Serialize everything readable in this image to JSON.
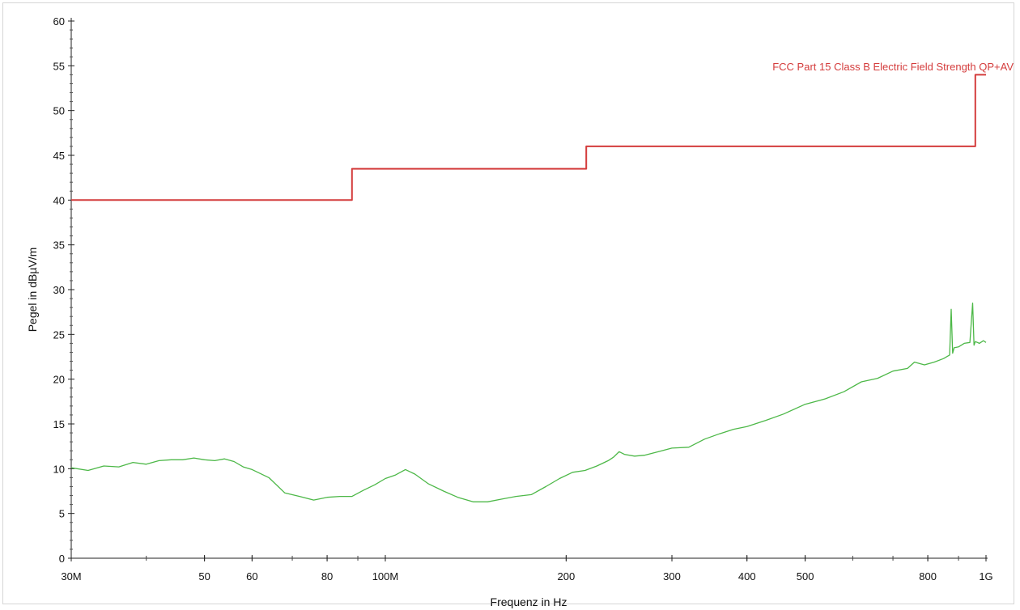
{
  "chart_data": {
    "type": "line",
    "xscale": "log",
    "xlim": [
      30000000,
      1000000000
    ],
    "ylim": [
      0,
      60
    ],
    "xlabel": "Frequenz in Hz",
    "ylabel": "Pegel in dBµV/m",
    "grid": false,
    "x_ticks": [
      {
        "value": 30000000,
        "label": "30M"
      },
      {
        "value": 50000000,
        "label": "50"
      },
      {
        "value": 60000000,
        "label": "60"
      },
      {
        "value": 80000000,
        "label": "80"
      },
      {
        "value": 100000000,
        "label": "100M"
      },
      {
        "value": 200000000,
        "label": "200"
      },
      {
        "value": 300000000,
        "label": "300"
      },
      {
        "value": 400000000,
        "label": "400"
      },
      {
        "value": 500000000,
        "label": "500"
      },
      {
        "value": 800000000,
        "label": "800"
      },
      {
        "value": 1000000000,
        "label": "1G"
      }
    ],
    "y_ticks": [
      0,
      5,
      10,
      15,
      20,
      25,
      30,
      35,
      40,
      45,
      50,
      55,
      60
    ],
    "series": [
      {
        "name": "FCC Part 15 Class B Electric Field Strength QP+AV",
        "color": "#d43c3c",
        "step": true,
        "x": [
          30000000,
          88000000,
          88000000,
          216000000,
          216000000,
          960000000,
          960000000,
          1000000000
        ],
        "y": [
          40,
          40,
          43.5,
          43.5,
          46,
          46,
          54,
          54
        ]
      },
      {
        "color": "#4db848",
        "x": [
          30000000,
          32000000,
          34000000,
          36000000,
          38000000,
          40000000,
          42000000,
          44000000,
          46000000,
          48000000,
          50000000,
          52000000,
          54000000,
          56000000,
          58000000,
          60000000,
          64000000,
          68000000,
          72000000,
          76000000,
          80000000,
          84000000,
          88000000,
          92000000,
          96000000,
          100000000,
          104000000,
          108000000,
          112000000,
          118000000,
          125000000,
          132000000,
          140000000,
          148000000,
          156000000,
          165000000,
          175000000,
          185000000,
          195000000,
          205000000,
          215000000,
          225000000,
          235000000,
          240000000,
          245000000,
          250000000,
          260000000,
          270000000,
          285000000,
          300000000,
          320000000,
          340000000,
          360000000,
          380000000,
          400000000,
          430000000,
          460000000,
          500000000,
          540000000,
          580000000,
          620000000,
          660000000,
          700000000,
          740000000,
          760000000,
          790000000,
          820000000,
          850000000,
          870000000,
          875000000,
          880000000,
          885000000,
          900000000,
          920000000,
          940000000,
          950000000,
          955000000,
          960000000,
          975000000,
          990000000,
          1000000000
        ],
        "y": [
          10.1,
          9.8,
          10.3,
          10.2,
          10.7,
          10.5,
          10.9,
          11.0,
          11.0,
          11.2,
          11.0,
          10.9,
          11.1,
          10.8,
          10.2,
          9.9,
          9.0,
          7.3,
          6.9,
          6.5,
          6.8,
          6.9,
          6.9,
          7.6,
          8.2,
          8.9,
          9.3,
          9.9,
          9.4,
          8.3,
          7.5,
          6.8,
          6.3,
          6.3,
          6.6,
          6.9,
          7.1,
          8.0,
          8.9,
          9.6,
          9.8,
          10.3,
          10.9,
          11.3,
          11.9,
          11.6,
          11.4,
          11.5,
          11.9,
          12.3,
          12.4,
          13.3,
          13.9,
          14.4,
          14.7,
          15.4,
          16.1,
          17.2,
          17.8,
          18.6,
          19.7,
          20.1,
          20.9,
          21.2,
          21.9,
          21.6,
          21.9,
          22.3,
          22.7,
          27.8,
          22.9,
          23.5,
          23.6,
          24.0,
          24.1,
          28.5,
          23.8,
          24.2,
          24.0,
          24.3,
          24.1
        ]
      }
    ]
  }
}
